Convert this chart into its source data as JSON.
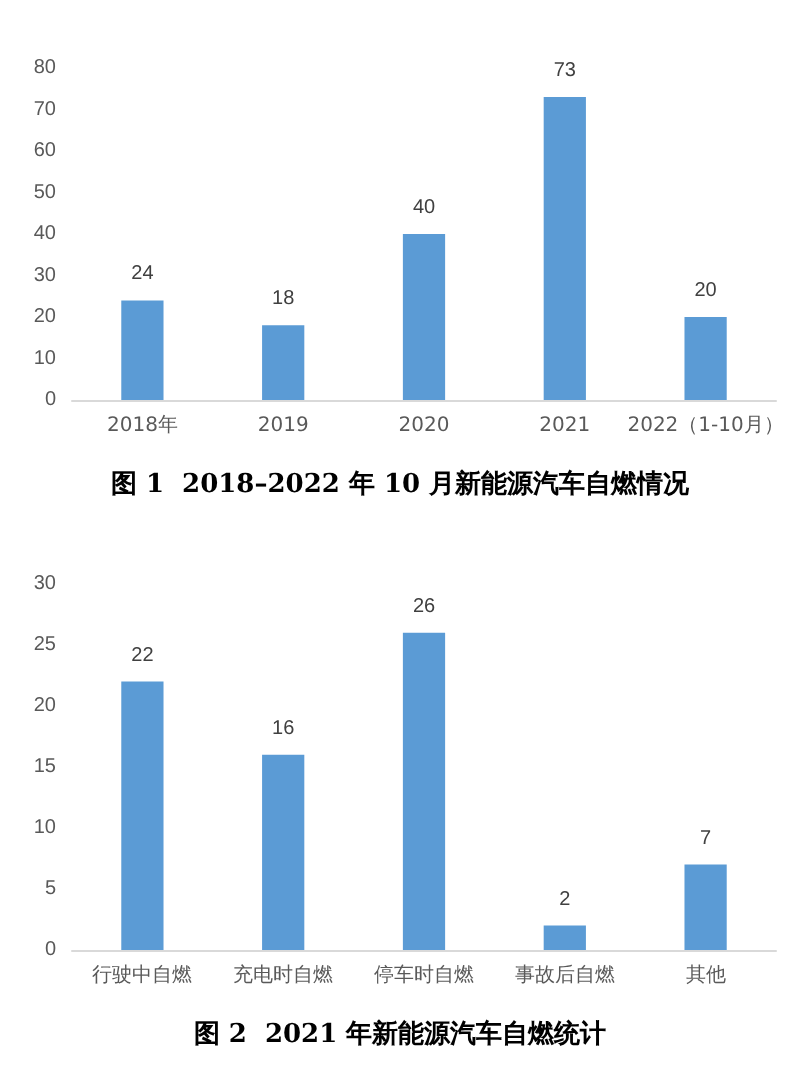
{
  "chart_data": [
    {
      "type": "bar",
      "title": "图 1  2018–2022 年 10 月新能源汽车自燃情况",
      "categories": [
        "2018年",
        "2019",
        "2020",
        "2021",
        "2022（1-10月）"
      ],
      "values": [
        24,
        18,
        40,
        73,
        20
      ],
      "color": "#5b9bd5",
      "ylim": [
        0,
        80
      ],
      "yticks": [
        0,
        10,
        20,
        30,
        40,
        50,
        60,
        70,
        80
      ],
      "data_labels": true
    },
    {
      "type": "bar",
      "title": "图 2  2021 年新能源汽车自燃统计",
      "categories": [
        "行驶中自燃",
        "充电时自燃",
        "停车时自燃",
        "事故后自燃",
        "其他"
      ],
      "values": [
        22,
        16,
        26,
        2,
        7
      ],
      "color": "#5b9bd5",
      "ylim": [
        0,
        30
      ],
      "yticks": [
        0,
        5,
        10,
        15,
        20,
        25,
        30
      ],
      "data_labels": true
    }
  ]
}
